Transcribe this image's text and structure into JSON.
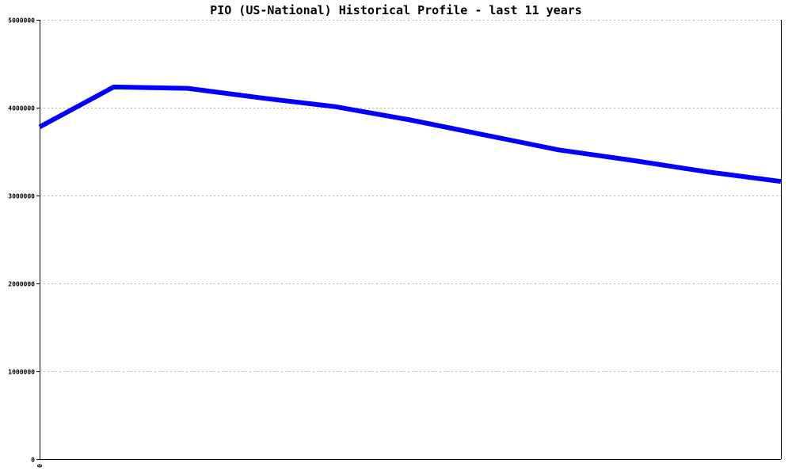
{
  "chart_data": {
    "type": "line",
    "title": "PIO (US-National) Historical Profile - last 11 years",
    "xlabel": "",
    "ylabel": "",
    "x": [
      0,
      1,
      2,
      3,
      4,
      5,
      6,
      7,
      8,
      9,
      10
    ],
    "x_tick_labels": [
      "0"
    ],
    "y_tick_values": [
      0,
      1000000,
      2000000,
      3000000,
      4000000,
      5000000
    ],
    "y_tick_labels": [
      "0",
      "1000000",
      "2000000",
      "3000000",
      "4000000",
      "5000000"
    ],
    "ylim": [
      0,
      5000000
    ],
    "xlim": [
      0,
      10
    ],
    "grid": true,
    "legend": "none",
    "series": [
      {
        "color": "#0000ff",
        "values": [
          3780000,
          4235000,
          4220000,
          4110000,
          4010000,
          3860000,
          3690000,
          3520000,
          3400000,
          3270000,
          3160000
        ]
      }
    ]
  }
}
